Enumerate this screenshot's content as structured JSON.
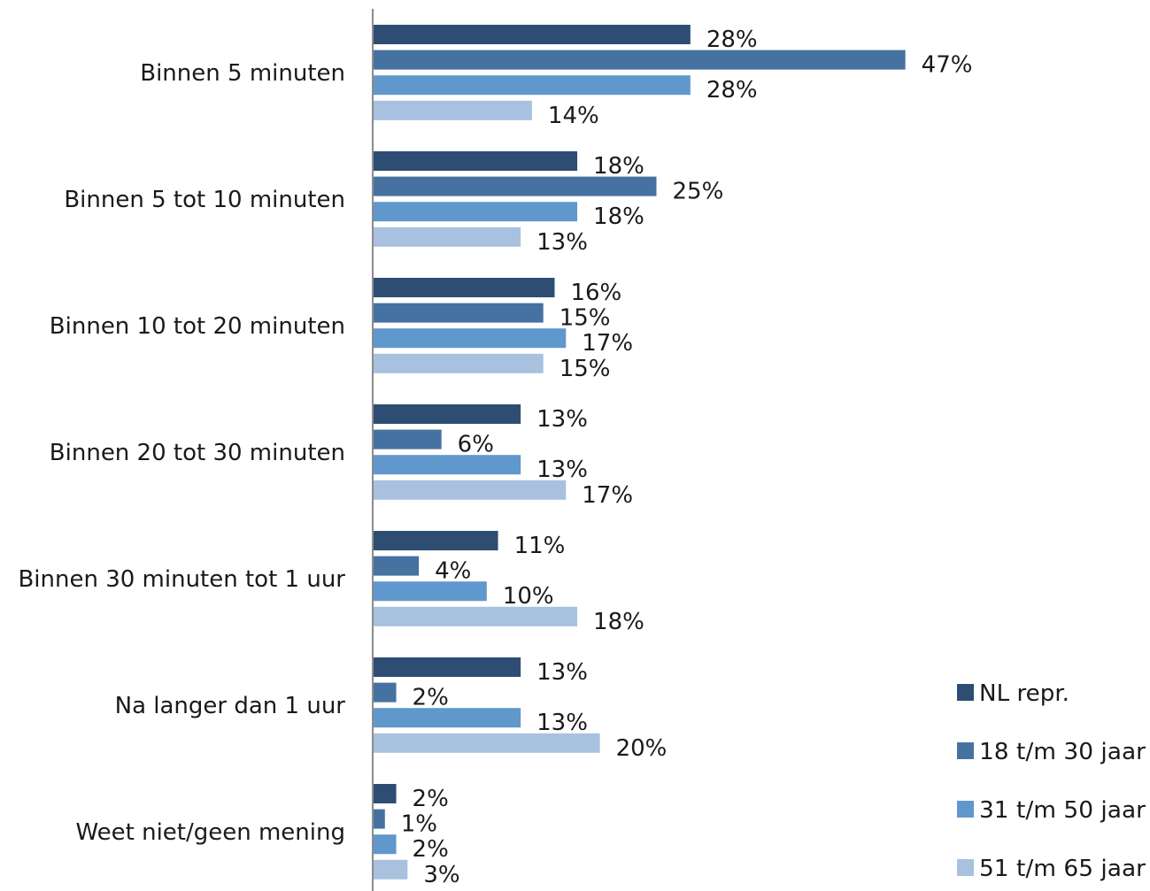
{
  "chart_data": {
    "type": "bar",
    "orientation": "horizontal",
    "categories": [
      "Binnen 5 minuten",
      "Binnen 5 tot 10 minuten",
      "Binnen 10 tot 20 minuten",
      "Binnen 20 tot 30 minuten",
      "Binnen 30 minuten tot 1 uur",
      "Na langer dan 1 uur",
      "Weet niet/geen mening"
    ],
    "series": [
      {
        "name": "NL repr.",
        "color": "#2e4d72",
        "values": [
          28,
          18,
          16,
          13,
          11,
          13,
          2
        ]
      },
      {
        "name": "18 t/m 30 jaar",
        "color": "#4672a1",
        "values": [
          47,
          25,
          15,
          6,
          4,
          2,
          1
        ]
      },
      {
        "name": "31 t/m 50 jaar",
        "color": "#6097cc",
        "values": [
          28,
          18,
          17,
          13,
          10,
          13,
          2
        ]
      },
      {
        "name": "51 t/m 65 jaar",
        "color": "#a8c1de",
        "values": [
          14,
          13,
          15,
          17,
          18,
          20,
          3
        ]
      }
    ],
    "value_suffix": "%",
    "xlim": [
      0,
      50
    ],
    "grid": false,
    "legend_position": "bottom-right",
    "title": "",
    "xlabel": "",
    "ylabel": ""
  }
}
